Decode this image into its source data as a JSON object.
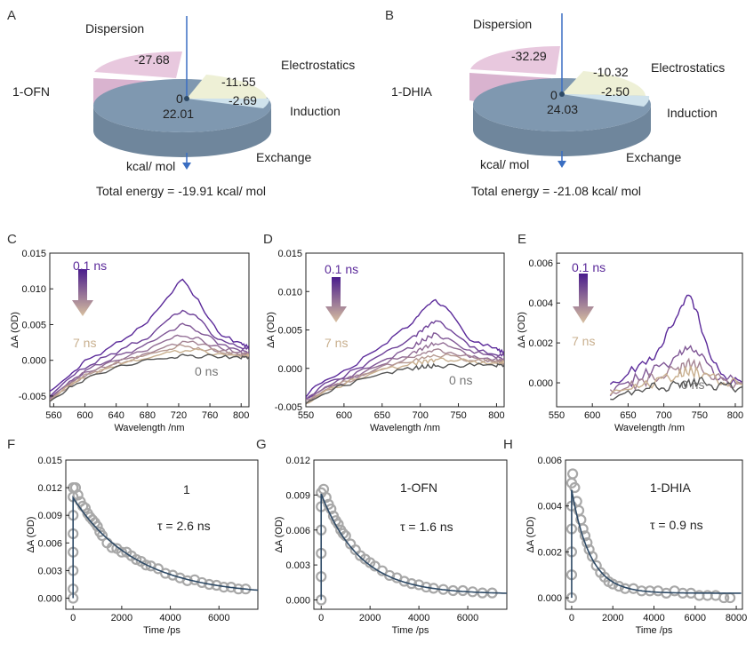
{
  "panels": {
    "A": {
      "letter": "A",
      "system": "1-OFN",
      "unit": "kcal/ mol",
      "center_label": "0",
      "total": "Total energy = -19.91 kcal/ mol",
      "labels": {
        "dispersion": "Dispersion",
        "electrostatics": "Electrostatics",
        "induction": "Induction",
        "exchange": "Exchange"
      },
      "slices": [
        {
          "name": "Dispersion",
          "value": -27.68,
          "text": "-27.68",
          "color": "#e8c8de"
        },
        {
          "name": "Electrostatics",
          "value": -11.55,
          "text": "-11.55",
          "color": "#eef0d6"
        },
        {
          "name": "Induction",
          "value": -2.69,
          "text": "-2.69",
          "color": "#cfe2ec"
        },
        {
          "name": "Exchange",
          "value": 22.01,
          "text": "22.01",
          "color": "#7f98b0"
        }
      ]
    },
    "B": {
      "letter": "B",
      "system": "1-DHIA",
      "unit": "kcal/ mol",
      "center_label": "0",
      "total": "Total energy = -21.08 kcal/ mol",
      "labels": {
        "dispersion": "Dispersion",
        "electrostatics": "Electrostatics",
        "induction": "Induction",
        "exchange": "Exchange"
      },
      "slices": [
        {
          "name": "Dispersion",
          "value": -32.29,
          "text": "-32.29",
          "color": "#e8c8de"
        },
        {
          "name": "Electrostatics",
          "value": -10.32,
          "text": "-10.32",
          "color": "#eef0d6"
        },
        {
          "name": "Induction",
          "value": -2.5,
          "text": "-2.50",
          "color": "#cfe2ec"
        },
        {
          "name": "Exchange",
          "value": 24.03,
          "text": "24.03",
          "color": "#7f98b0"
        }
      ]
    },
    "C": {
      "letter": "C",
      "top_label": "0.1 ns",
      "bottom_label": "7 ns",
      "zero_label": "0 ns",
      "xlabel": "Wavelength /nm",
      "ylabel": "ΔA (OD)"
    },
    "D": {
      "letter": "D",
      "top_label": "0.1 ns",
      "bottom_label": "7 ns",
      "zero_label": "0 ns",
      "xlabel": "Wavelength /nm",
      "ylabel": "ΔA (OD)"
    },
    "E": {
      "letter": "E",
      "top_label": "0.1 ns",
      "bottom_label": "7 ns",
      "zero_label": "0 ns",
      "xlabel": "Wavelength /nm",
      "ylabel": "ΔA (OD)"
    },
    "F": {
      "letter": "F",
      "name": "1",
      "tau": "τ = 2.6 ns",
      "xlabel": "Time /ps",
      "ylabel": "ΔA (OD)"
    },
    "G": {
      "letter": "G",
      "name": "1-OFN",
      "tau": "τ = 1.6 ns",
      "xlabel": "Time /ps",
      "ylabel": "ΔA (OD)"
    },
    "H": {
      "letter": "H",
      "name": "1-DHIA",
      "tau": "τ = 0.9 ns",
      "xlabel": "Time /ps",
      "ylabel": "ΔA (OD)"
    }
  },
  "colors": {
    "early": "#5b2a9a",
    "late": "#c9b08f",
    "zero": "#555555",
    "fit": "#2e4a66",
    "points": "#a8a8a8"
  },
  "chart_data": [
    {
      "type": "pie",
      "panel": "A",
      "categories": [
        "Dispersion",
        "Electrostatics",
        "Induction",
        "Exchange"
      ],
      "values": [
        -27.68,
        -11.55,
        -2.69,
        22.01
      ]
    },
    {
      "type": "pie",
      "panel": "B",
      "categories": [
        "Dispersion",
        "Electrostatics",
        "Induction",
        "Exchange"
      ],
      "values": [
        -32.29,
        -10.32,
        -2.5,
        24.03
      ]
    },
    {
      "type": "line",
      "panel": "C",
      "xlabel": "Wavelength /nm",
      "ylabel": "ΔA (OD)",
      "xlim": [
        555,
        810
      ],
      "ylim": [
        -0.0065,
        0.015
      ],
      "xticks": [
        560,
        600,
        640,
        680,
        720,
        760,
        800
      ],
      "yticks": [
        -0.005,
        0.0,
        0.005,
        0.01,
        0.015
      ],
      "ytick_labels": [
        "-0.005",
        "0.000",
        "0.005",
        "0.010",
        "0.015"
      ],
      "x": [
        555,
        580,
        600,
        640,
        680,
        705,
        725,
        745,
        770,
        800,
        810
      ],
      "series": [
        {
          "values": [
            -0.0045,
            -0.002,
            -0.0002,
            0.0023,
            0.0052,
            0.0088,
            0.0113,
            0.0085,
            0.0038,
            0.0023,
            0.002
          ]
        },
        {
          "values": [
            -0.005,
            -0.0026,
            -0.001,
            0.0012,
            0.0032,
            0.0055,
            0.0071,
            0.0058,
            0.003,
            0.0018,
            0.0015
          ]
        },
        {
          "values": [
            -0.0052,
            -0.003,
            -0.0015,
            0.0005,
            0.0022,
            0.004,
            0.005,
            0.0042,
            0.0024,
            0.0013,
            0.0012
          ]
        },
        {
          "values": [
            -0.0054,
            -0.0032,
            -0.0018,
            0.0,
            0.0015,
            0.0028,
            0.0035,
            0.003,
            0.0018,
            0.001,
            0.001
          ]
        },
        {
          "values": [
            -0.0055,
            -0.0034,
            -0.002,
            -0.0003,
            0.001,
            0.002,
            0.0026,
            0.0023,
            0.0014,
            0.0008,
            0.0008
          ]
        },
        {
          "values": [
            -0.0056,
            -0.0035,
            -0.0022,
            -0.0005,
            0.0007,
            0.0015,
            0.002,
            0.0018,
            0.0012,
            0.0007,
            0.0007
          ]
        },
        {
          "values": [
            -0.0057,
            -0.0036,
            -0.0024,
            -0.0007,
            0.0004,
            0.001,
            0.0014,
            0.0013,
            0.0009,
            0.0006,
            0.0006
          ]
        },
        {
          "values": [
            -0.0058,
            -0.0038,
            -0.0026,
            -0.001,
            0.0,
            0.0004,
            0.0006,
            0.0006,
            0.0005,
            0.0004,
            0.0004
          ]
        }
      ]
    },
    {
      "type": "line",
      "panel": "D",
      "xlabel": "Wavelength /nm",
      "ylabel": "ΔA (OD)",
      "xlim": [
        550,
        810
      ],
      "ylim": [
        -0.005,
        0.015
      ],
      "xticks": [
        550,
        600,
        650,
        700,
        750,
        800
      ],
      "yticks": [
        -0.005,
        0.0,
        0.005,
        0.01,
        0.015
      ],
      "ytick_labels": [
        "-0.005",
        "0.000",
        "0.005",
        "0.010",
        "0.015"
      ],
      "x": [
        550,
        575,
        600,
        650,
        690,
        705,
        720,
        740,
        765,
        800,
        810
      ],
      "series": [
        {
          "values": [
            -0.0035,
            -0.0015,
            -0.0005,
            0.003,
            0.006,
            0.0078,
            0.009,
            0.0072,
            0.0038,
            0.0025,
            0.0022
          ]
        },
        {
          "values": [
            -0.004,
            -0.002,
            -0.001,
            0.0018,
            0.004,
            0.0052,
            0.0062,
            0.005,
            0.0028,
            0.0018,
            0.0016
          ]
        },
        {
          "values": [
            -0.0042,
            -0.0024,
            -0.0014,
            0.001,
            0.0028,
            0.0037,
            0.0045,
            0.0037,
            0.0022,
            0.0014,
            0.0013
          ]
        },
        {
          "values": [
            -0.0043,
            -0.0026,
            -0.0016,
            0.0005,
            0.002,
            0.0027,
            0.0033,
            0.0028,
            0.0017,
            0.0011,
            0.0011
          ]
        },
        {
          "values": [
            -0.0044,
            -0.0028,
            -0.0018,
            0.0002,
            0.0014,
            0.002,
            0.0024,
            0.0021,
            0.0014,
            0.0009,
            0.0009
          ]
        },
        {
          "values": [
            -0.0045,
            -0.0029,
            -0.0019,
            0.0,
            0.001,
            0.0014,
            0.0017,
            0.0016,
            0.0011,
            0.0008,
            0.0008
          ]
        },
        {
          "values": [
            -0.0046,
            -0.003,
            -0.002,
            -0.0002,
            0.0006,
            0.0009,
            0.0011,
            0.0011,
            0.0009,
            0.0007,
            0.0007
          ]
        },
        {
          "values": [
            -0.0047,
            -0.0032,
            -0.0022,
            -0.0006,
            0.0,
            0.0002,
            0.0003,
            0.0004,
            0.0004,
            0.0004,
            0.0004
          ]
        }
      ]
    },
    {
      "type": "line",
      "panel": "E",
      "xlabel": "Wavelength /nm",
      "ylabel": "ΔA (OD)",
      "xlim": [
        550,
        810
      ],
      "ylim": [
        -0.0012,
        0.0065
      ],
      "xticks": [
        550,
        600,
        650,
        700,
        750,
        800
      ],
      "yticks": [
        0.0,
        0.002,
        0.004,
        0.006
      ],
      "ytick_labels": [
        "0.000",
        "0.002",
        "0.004",
        "0.006"
      ],
      "x": [
        625,
        650,
        680,
        700,
        720,
        735,
        750,
        770,
        790,
        810
      ],
      "series": [
        {
          "values": [
            -0.0003,
            0.0005,
            0.0012,
            0.002,
            0.0035,
            0.0045,
            0.0032,
            0.0008,
            0.0002,
            0.0
          ]
        },
        {
          "values": [
            -0.0004,
            0.0,
            0.0005,
            0.0009,
            0.0014,
            0.0018,
            0.0014,
            0.0005,
            0.0001,
            0.0
          ]
        },
        {
          "values": [
            -0.0005,
            -0.0002,
            0.0002,
            0.0004,
            0.0007,
            0.001,
            0.0008,
            0.0003,
            0.0,
            0.0
          ]
        },
        {
          "values": [
            -0.0006,
            -0.0003,
            0.0,
            0.0002,
            0.0004,
            0.0006,
            0.0005,
            0.0002,
            0.0,
            -0.0001
          ]
        },
        {
          "values": [
            -0.0007,
            -0.0005,
            -0.0003,
            -0.0002,
            -0.0001,
            0.0,
            0.0,
            -0.0001,
            -0.0002,
            -0.0002
          ]
        }
      ]
    },
    {
      "type": "scatter",
      "panel": "F",
      "xlabel": "Time /ps",
      "ylabel": "ΔA (OD)",
      "xlim": [
        -300,
        7600
      ],
      "ylim": [
        -0.0012,
        0.015
      ],
      "xticks": [
        0,
        2000,
        4000,
        6000
      ],
      "yticks": [
        0.0,
        0.003,
        0.006,
        0.009,
        0.012,
        0.015
      ],
      "ytick_labels": [
        "0.000",
        "0.003",
        "0.006",
        "0.009",
        "0.012",
        "0.015"
      ],
      "amplitude": 0.0106,
      "tau_ps": 2600,
      "offset": 0.0003,
      "points": [
        [
          0,
          0.0
        ],
        [
          0,
          0.001
        ],
        [
          0,
          0.003
        ],
        [
          0,
          0.005
        ],
        [
          0,
          0.007
        ],
        [
          0,
          0.009
        ],
        [
          0,
          0.011
        ],
        [
          0,
          0.012
        ],
        [
          100,
          0.012
        ],
        [
          200,
          0.0112
        ],
        [
          300,
          0.0105
        ],
        [
          400,
          0.01
        ],
        [
          500,
          0.0098
        ],
        [
          600,
          0.0092
        ],
        [
          700,
          0.0088
        ],
        [
          800,
          0.0085
        ],
        [
          900,
          0.0082
        ],
        [
          1000,
          0.0078
        ],
        [
          1100,
          0.0072
        ],
        [
          1200,
          0.0068
        ],
        [
          1400,
          0.006
        ],
        [
          1600,
          0.0055
        ],
        [
          1800,
          0.0054
        ],
        [
          2000,
          0.005
        ],
        [
          2200,
          0.005
        ],
        [
          2400,
          0.0046
        ],
        [
          2600,
          0.0042
        ],
        [
          2800,
          0.004
        ],
        [
          3000,
          0.0036
        ],
        [
          3200,
          0.0035
        ],
        [
          3500,
          0.0032
        ],
        [
          3800,
          0.0027
        ],
        [
          4100,
          0.0025
        ],
        [
          4400,
          0.0022
        ],
        [
          4700,
          0.0019
        ],
        [
          5000,
          0.002
        ],
        [
          5300,
          0.0017
        ],
        [
          5600,
          0.0015
        ],
        [
          5900,
          0.0014
        ],
        [
          6200,
          0.0012
        ],
        [
          6500,
          0.0012
        ],
        [
          6800,
          0.001
        ],
        [
          7100,
          0.001
        ]
      ]
    },
    {
      "type": "scatter",
      "panel": "G",
      "xlabel": "Time /ps",
      "ylabel": "ΔA (OD)",
      "xlim": [
        -300,
        7600
      ],
      "ylim": [
        -0.0008,
        0.012
      ],
      "xticks": [
        0,
        2000,
        4000,
        6000
      ],
      "yticks": [
        0.0,
        0.003,
        0.006,
        0.009,
        0.012
      ],
      "ytick_labels": [
        "0.000",
        "0.003",
        "0.006",
        "0.009",
        "0.012"
      ],
      "amplitude": 0.0086,
      "tau_ps": 1600,
      "offset": 0.0005,
      "points": [
        [
          0,
          0.0
        ],
        [
          0,
          0.002
        ],
        [
          0,
          0.004
        ],
        [
          0,
          0.006
        ],
        [
          0,
          0.008
        ],
        [
          0,
          0.0092
        ],
        [
          100,
          0.0095
        ],
        [
          200,
          0.0088
        ],
        [
          300,
          0.0082
        ],
        [
          400,
          0.0078
        ],
        [
          500,
          0.0072
        ],
        [
          600,
          0.0068
        ],
        [
          700,
          0.0065
        ],
        [
          800,
          0.006
        ],
        [
          900,
          0.0057
        ],
        [
          1000,
          0.0055
        ],
        [
          1200,
          0.0048
        ],
        [
          1400,
          0.0043
        ],
        [
          1600,
          0.0038
        ],
        [
          1800,
          0.0035
        ],
        [
          2000,
          0.0032
        ],
        [
          2200,
          0.0029
        ],
        [
          2500,
          0.0025
        ],
        [
          2800,
          0.0021
        ],
        [
          3100,
          0.0019
        ],
        [
          3400,
          0.0016
        ],
        [
          3700,
          0.0014
        ],
        [
          4000,
          0.0013
        ],
        [
          4300,
          0.0011
        ],
        [
          4600,
          0.001
        ],
        [
          5000,
          0.0009
        ],
        [
          5400,
          0.0008
        ],
        [
          5800,
          0.0008
        ],
        [
          6200,
          0.0007
        ],
        [
          6600,
          0.0006
        ],
        [
          7000,
          0.0006
        ]
      ]
    },
    {
      "type": "scatter",
      "panel": "H",
      "xlabel": "Time /ps",
      "ylabel": "ΔA (OD)",
      "xlim": [
        -300,
        8300
      ],
      "ylim": [
        -0.0005,
        0.006
      ],
      "xticks": [
        0,
        2000,
        4000,
        6000,
        8000
      ],
      "yticks": [
        0.0,
        0.002,
        0.004,
        0.006
      ],
      "ytick_labels": [
        "0.000",
        "0.002",
        "0.004",
        "0.006"
      ],
      "amplitude": 0.0045,
      "tau_ps": 900,
      "offset": 0.0002,
      "points": [
        [
          0,
          0.0
        ],
        [
          0,
          0.001
        ],
        [
          0,
          0.002
        ],
        [
          0,
          0.003
        ],
        [
          0,
          0.004
        ],
        [
          0,
          0.005
        ],
        [
          50,
          0.0054
        ],
        [
          150,
          0.0048
        ],
        [
          250,
          0.0042
        ],
        [
          350,
          0.0038
        ],
        [
          450,
          0.0034
        ],
        [
          550,
          0.003
        ],
        [
          650,
          0.0027
        ],
        [
          750,
          0.0024
        ],
        [
          850,
          0.0021
        ],
        [
          1000,
          0.0018
        ],
        [
          1200,
          0.0014
        ],
        [
          1400,
          0.0011
        ],
        [
          1600,
          0.0009
        ],
        [
          1800,
          0.0007
        ],
        [
          2000,
          0.0006
        ],
        [
          2300,
          0.0005
        ],
        [
          2600,
          0.0004
        ],
        [
          3000,
          0.0004
        ],
        [
          3400,
          0.0003
        ],
        [
          3800,
          0.0003
        ],
        [
          4200,
          0.0003
        ],
        [
          4600,
          0.0002
        ],
        [
          5000,
          0.0003
        ],
        [
          5400,
          0.0002
        ],
        [
          5800,
          0.0002
        ],
        [
          6200,
          0.0001
        ],
        [
          6600,
          0.0001
        ],
        [
          7000,
          0.0001
        ],
        [
          7400,
          0.0
        ],
        [
          7700,
          0.0
        ]
      ]
    }
  ]
}
